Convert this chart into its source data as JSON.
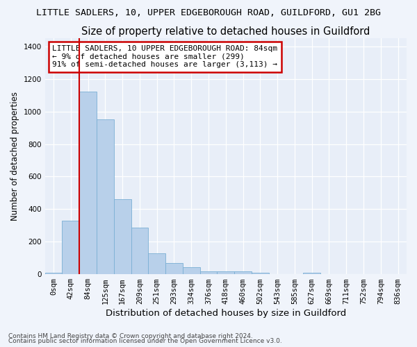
{
  "title1": "LITTLE SADLERS, 10, UPPER EDGEBOROUGH ROAD, GUILDFORD, GU1 2BG",
  "title2": "Size of property relative to detached houses in Guildford",
  "xlabel": "Distribution of detached houses by size in Guildford",
  "ylabel": "Number of detached properties",
  "footnote1": "Contains HM Land Registry data © Crown copyright and database right 2024.",
  "footnote2": "Contains public sector information licensed under the Open Government Licence v3.0.",
  "bar_labels": [
    "0sqm",
    "42sqm",
    "84sqm",
    "125sqm",
    "167sqm",
    "209sqm",
    "251sqm",
    "293sqm",
    "334sqm",
    "376sqm",
    "418sqm",
    "460sqm",
    "502sqm",
    "543sqm",
    "585sqm",
    "627sqm",
    "669sqm",
    "711sqm",
    "752sqm",
    "794sqm",
    "836sqm"
  ],
  "bar_values": [
    8,
    330,
    1120,
    950,
    460,
    285,
    130,
    68,
    42,
    20,
    20,
    20,
    10,
    0,
    0,
    10,
    0,
    0,
    0,
    0,
    0
  ],
  "bar_color": "#b8d0ea",
  "bar_edge_color": "#7aafd4",
  "vline_color": "#cc0000",
  "annotation_text": "LITTLE SADLERS, 10 UPPER EDGEBOROUGH ROAD: 84sqm\n← 9% of detached houses are smaller (299)\n91% of semi-detached houses are larger (3,113) →",
  "annotation_box_color": "#ffffff",
  "annotation_border_color": "#cc0000",
  "ylim": [
    0,
    1450
  ],
  "yticks": [
    0,
    200,
    400,
    600,
    800,
    1000,
    1200,
    1400
  ],
  "bg_color": "#f0f4fb",
  "plot_bg_color": "#e8eef8",
  "grid_color": "#ffffff",
  "title1_fontsize": 9.5,
  "title2_fontsize": 10.5,
  "ylabel_fontsize": 8.5,
  "xlabel_fontsize": 9.5,
  "tick_fontsize": 7.5,
  "annotation_fontsize": 8,
  "footnote_fontsize": 6.5
}
